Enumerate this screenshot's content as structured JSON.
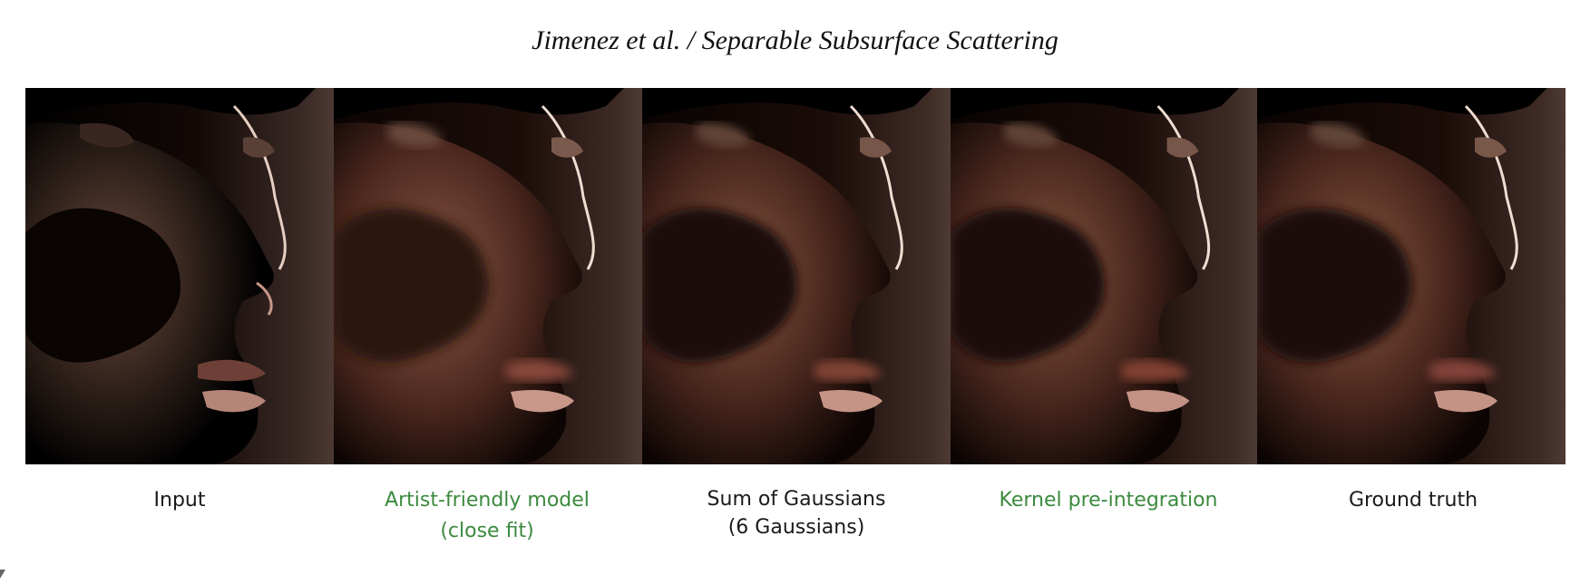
{
  "header": {
    "title": "Jimenez et al. / Separable Subsurface Scattering"
  },
  "panels": [
    {
      "id": "input",
      "caption": [
        "Input"
      ],
      "caption_color": "#1a1a1a",
      "shadow_softness": 0.05
    },
    {
      "id": "artist",
      "caption": [
        "Artist-friendly model",
        "(close fit)"
      ],
      "caption_color": "#3c8a3e",
      "shadow_softness": 0.8
    },
    {
      "id": "sum",
      "caption": [
        "Sum of Gaussians",
        "(6 Gaussians)"
      ],
      "caption_color": "#1a1a1a",
      "shadow_softness": 0.75
    },
    {
      "id": "kernel",
      "caption": [
        "Kernel pre-integration"
      ],
      "caption_color": "#3c8a3e",
      "shadow_softness": 0.75
    },
    {
      "id": "gt",
      "caption": [
        "Ground truth"
      ],
      "caption_color": "#1a1a1a",
      "shadow_softness": 0.78
    }
  ],
  "colors": {
    "skin_lit": "#d8a58e",
    "skin_mid": "#8a5040",
    "skin_dark": "#2a1410",
    "background_right": "#4a3530",
    "highlight": "#f4e2d8"
  }
}
